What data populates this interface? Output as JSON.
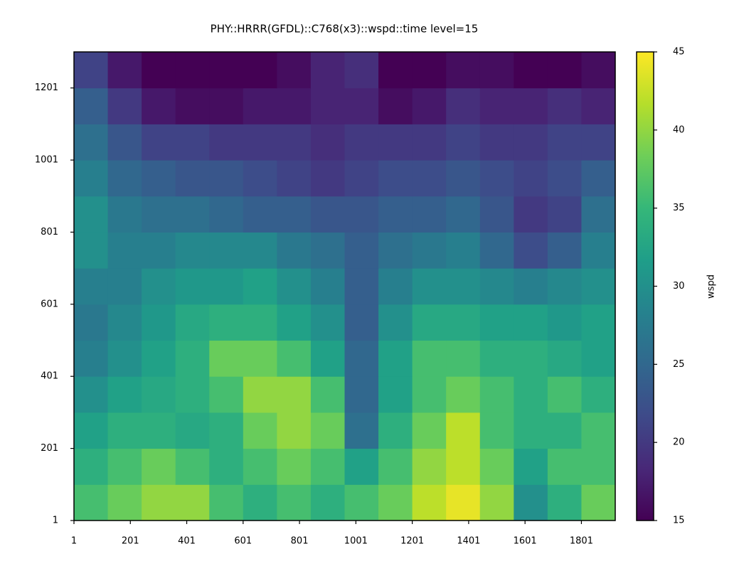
{
  "chart_data": {
    "type": "heatmap",
    "title": "PHY::HRRR(GFDL)::C768(x3)::wspd::time level=15",
    "cmap": "viridis",
    "colorbar_label": "wspd",
    "xbins": [
      1,
      121,
      241,
      361,
      481,
      601,
      721,
      841,
      961,
      1081,
      1201,
      1321,
      1441,
      1561,
      1681,
      1801,
      1921
    ],
    "ybins": [
      1,
      101,
      201,
      301,
      401,
      501,
      601,
      701,
      801,
      901,
      1001,
      1101,
      1201,
      1301
    ],
    "z": [
      [
        36,
        38,
        40,
        40,
        36,
        34,
        36,
        34,
        36,
        38,
        42,
        44,
        40,
        30,
        34,
        38
      ],
      [
        34,
        36,
        38,
        36,
        34,
        36,
        38,
        36,
        32,
        36,
        40,
        42,
        38,
        32,
        36,
        36
      ],
      [
        32,
        34,
        34,
        33,
        34,
        38,
        40,
        38,
        26,
        34,
        38,
        42,
        36,
        34,
        34,
        36
      ],
      [
        30,
        32,
        33,
        34,
        36,
        40,
        40,
        36,
        25,
        32,
        36,
        38,
        36,
        34,
        36,
        34
      ],
      [
        28,
        30,
        32,
        34,
        38,
        38,
        36,
        32,
        25,
        32,
        36,
        36,
        34,
        34,
        33,
        32
      ],
      [
        27,
        29,
        31,
        33,
        34,
        34,
        32,
        30,
        24,
        30,
        33,
        33,
        32,
        32,
        31,
        32
      ],
      [
        28,
        28,
        30,
        31,
        31,
        32,
        30,
        28,
        24,
        28,
        30,
        30,
        29,
        28,
        29,
        30
      ],
      [
        30,
        28,
        28,
        29,
        29,
        29,
        27,
        26,
        24,
        26,
        27,
        28,
        25,
        22,
        24,
        28
      ],
      [
        30,
        27,
        26,
        26,
        25,
        24,
        24,
        23,
        23,
        24,
        24,
        25,
        23,
        20,
        21,
        26
      ],
      [
        28,
        25,
        24,
        23,
        23,
        22,
        21,
        20,
        21,
        22,
        22,
        23,
        22,
        21,
        22,
        24
      ],
      [
        26,
        23,
        21,
        21,
        20,
        20,
        20,
        19,
        20,
        20,
        20,
        21,
        20,
        20,
        21,
        21
      ],
      [
        24,
        20,
        17,
        16,
        16,
        17,
        17,
        18,
        18,
        16,
        17,
        19,
        18,
        18,
        19,
        18
      ],
      [
        21,
        17,
        15,
        15,
        15,
        15,
        16,
        18,
        19,
        15,
        15,
        16,
        16,
        15,
        15,
        16
      ]
    ],
    "xlim": [
      1,
      1921
    ],
    "xticks": [
      1,
      201,
      401,
      601,
      801,
      1001,
      1201,
      1401,
      1601,
      1801
    ],
    "ylim": [
      1,
      1301
    ],
    "yticks": [
      1,
      201,
      401,
      601,
      801,
      1001,
      1201
    ],
    "clim": [
      15,
      45
    ],
    "cticks": [
      15,
      20,
      25,
      30,
      35,
      40,
      45
    ]
  }
}
